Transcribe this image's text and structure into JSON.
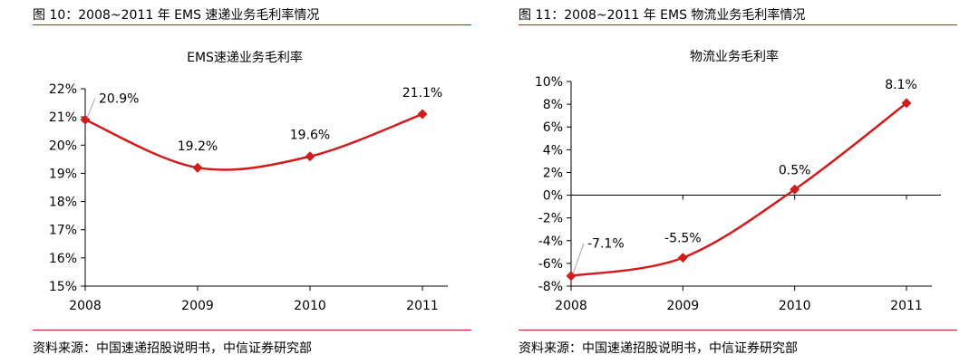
{
  "figures": [
    {
      "caption": "图 10：2008~2011 年 EMS 速递业务毛利率情况",
      "source": "资料来源：中国速递招股说明书，中信证券研究部"
    },
    {
      "caption": "图 11：2008~2011 年 EMS 物流业务毛利率情况",
      "source": "资料来源：中国速递招股说明书，中信证券研究部"
    }
  ],
  "colors": {
    "accent": "#d01c1c",
    "axis": "#000000",
    "leader": "#a6a6a6"
  },
  "chart_data": [
    {
      "type": "line",
      "title": "EMS速递业务毛利率",
      "categories": [
        "2008",
        "2009",
        "2010",
        "2011"
      ],
      "values": [
        20.9,
        19.2,
        19.6,
        21.1
      ],
      "data_labels": [
        "20.9%",
        "19.2%",
        "19.6%",
        "21.1%"
      ],
      "ylim": [
        15,
        22
      ],
      "yticks": [
        15,
        16,
        17,
        18,
        19,
        20,
        21,
        22
      ],
      "ytick_labels": [
        "15%",
        "16%",
        "17%",
        "18%",
        "19%",
        "20%",
        "21%",
        "22%"
      ],
      "xlabel": "",
      "ylabel": "",
      "grid": false,
      "legend": "none",
      "smooth": true,
      "marker": "diamond"
    },
    {
      "type": "line",
      "title": "物流业务毛利率",
      "categories": [
        "2008",
        "2009",
        "2010",
        "2011"
      ],
      "values": [
        -7.1,
        -5.5,
        0.5,
        8.1
      ],
      "data_labels": [
        "-7.1%",
        "-5.5%",
        "0.5%",
        "8.1%"
      ],
      "ylim": [
        -8,
        10
      ],
      "yticks": [
        -8,
        -6,
        -4,
        -2,
        0,
        2,
        4,
        6,
        8,
        10
      ],
      "ytick_labels": [
        "-8%",
        "-6%",
        "-4%",
        "-2%",
        "0%",
        "2%",
        "4%",
        "6%",
        "8%",
        "10%"
      ],
      "xlabel": "",
      "ylabel": "",
      "grid": false,
      "legend": "none",
      "smooth": true,
      "marker": "diamond"
    }
  ]
}
